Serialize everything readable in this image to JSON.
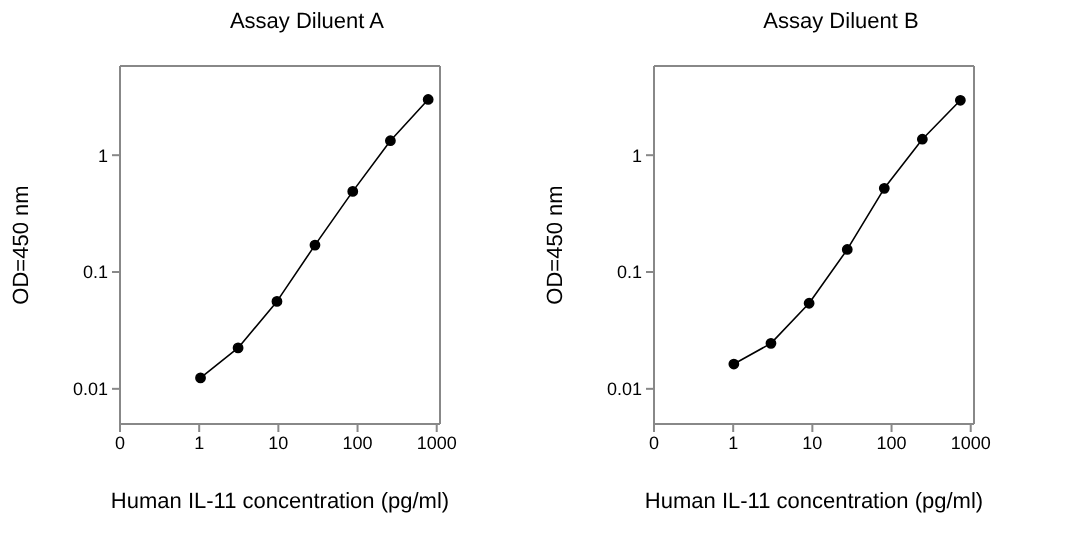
{
  "chart_data": [
    {
      "type": "line",
      "title": "Assay Diluent A",
      "xlabel": "Human IL-11 concentration (pg/ml)",
      "ylabel": "OD=450 nm",
      "log": "xy",
      "marker": "circle",
      "line_style": "solid",
      "x": [
        1.04,
        3.1,
        9.6,
        29,
        87,
        260,
        780
      ],
      "series": [
        {
          "color": "#000000",
          "values": [
            0.0124,
            0.0224,
            0.056,
            0.17,
            0.49,
            1.33,
            3.0
          ]
        }
      ],
      "xlim": [
        0.1,
        1100
      ],
      "xticks": [
        {
          "value": 0.1,
          "label": "0"
        },
        1,
        10,
        100,
        1000
      ],
      "ylim": [
        0.005,
        5.8
      ],
      "yticks": [
        0.01,
        0.1,
        1
      ]
    },
    {
      "type": "line",
      "title": "Assay Diluent B",
      "xlabel": "Human IL-11 concentration (pg/ml)",
      "ylabel": "OD=450 nm",
      "log": "xy",
      "marker": "circle",
      "line_style": "solid",
      "x": [
        1.02,
        3.0,
        9.1,
        27.6,
        81,
        245,
        740
      ],
      "series": [
        {
          "color": "#000000",
          "values": [
            0.0163,
            0.0245,
            0.054,
            0.156,
            0.52,
            1.37,
            2.95
          ]
        }
      ],
      "xlim": [
        0.1,
        1100
      ],
      "xticks": [
        {
          "value": 0.1,
          "label": "0"
        },
        1,
        10,
        100,
        1000
      ],
      "ylim": [
        0.005,
        5.8
      ],
      "yticks": [
        0.01,
        0.1,
        1
      ]
    }
  ]
}
